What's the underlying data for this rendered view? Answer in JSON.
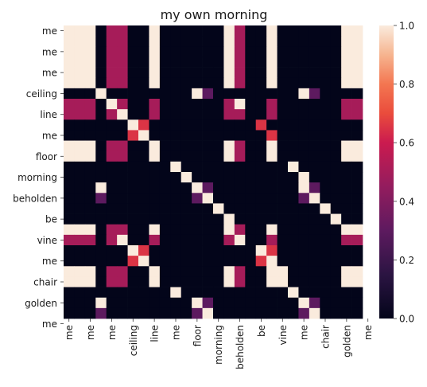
{
  "chart_data": {
    "type": "heatmap",
    "title": "my own morning",
    "xlabel": "",
    "ylabel": "",
    "tokens": [
      "me",
      "me",
      "me",
      "",
      "ceiling",
      "",
      "line",
      "",
      "me",
      "",
      "floor",
      "",
      "morning",
      "",
      "beholden",
      "",
      "be",
      "",
      "vine",
      "",
      "me",
      "",
      "chair",
      "",
      "golden",
      "",
      "me",
      ""
    ],
    "y_tick_labels": [
      "me",
      "me",
      "me",
      "ceiling",
      "line",
      "me",
      "floor",
      "morning",
      "beholden",
      "be",
      "vine",
      "me",
      "chair",
      "golden",
      "me"
    ],
    "x_tick_labels": [
      "me",
      "me",
      "me",
      "ceiling",
      "line",
      "me",
      "floor",
      "morning",
      "beholden",
      "be",
      "vine",
      "me",
      "chair",
      "golden",
      "me"
    ],
    "clim": [
      0.0,
      1.0
    ],
    "colorbar_ticks": [
      "0.0",
      "0.2",
      "0.4",
      "0.6",
      "0.8",
      "1.0"
    ],
    "colormap": "rocket",
    "values": [
      [
        1,
        1,
        1,
        0,
        0.5,
        0.5,
        0,
        0,
        1,
        0,
        0,
        0,
        0,
        0,
        0,
        1,
        0.5,
        0,
        0,
        1,
        0,
        0,
        0,
        0,
        0,
        0,
        1,
        1
      ],
      [
        1,
        1,
        1,
        0,
        0.5,
        0.5,
        0,
        0,
        1,
        0,
        0,
        0,
        0,
        0,
        0,
        1,
        0.5,
        0,
        0,
        1,
        0,
        0,
        0,
        0,
        0,
        0,
        1,
        1
      ],
      [
        1,
        1,
        1,
        0,
        0.5,
        0.5,
        0,
        0,
        1,
        0,
        0,
        0,
        0,
        0,
        0,
        1,
        0.5,
        0,
        0,
        1,
        0,
        0,
        0,
        0,
        0,
        0,
        1,
        1
      ],
      [
        1,
        1,
        1,
        0,
        0.5,
        0.5,
        0,
        0,
        1,
        0,
        0,
        0,
        0,
        0,
        0,
        1,
        0.5,
        0,
        0,
        1,
        0,
        0,
        0,
        0,
        0,
        0,
        1,
        1
      ],
      [
        1,
        1,
        1,
        0,
        0.5,
        0.5,
        0,
        0,
        1,
        0,
        0,
        0,
        0,
        0,
        0,
        1,
        0.5,
        0,
        0,
        1,
        0,
        0,
        0,
        0,
        0,
        0,
        1,
        1
      ],
      [
        1,
        1,
        1,
        0,
        0.5,
        0.5,
        0,
        0,
        1,
        0,
        0,
        0,
        0,
        0,
        0,
        1,
        0.5,
        0,
        0,
        1,
        0,
        0,
        0,
        0,
        0,
        0,
        1,
        1
      ],
      [
        0,
        0,
        0,
        1,
        0,
        0,
        0,
        0,
        0,
        0,
        0,
        0,
        1,
        0.3,
        0,
        0,
        0,
        0,
        0,
        0,
        0,
        0,
        1,
        0.3,
        0,
        0,
        0,
        0
      ],
      [
        0.5,
        0.5,
        0.5,
        0,
        1,
        0.5,
        0,
        0,
        0.5,
        0,
        0,
        0,
        0,
        0,
        0,
        0.5,
        1,
        0,
        0,
        0.5,
        0,
        0,
        0,
        0,
        0,
        0,
        0.5,
        0.5
      ],
      [
        0.5,
        0.5,
        0.5,
        0,
        0.5,
        1,
        0,
        0,
        0.5,
        0,
        0,
        0,
        0,
        0,
        0,
        0.5,
        0.5,
        0,
        0,
        0.5,
        0,
        0,
        0,
        0,
        0,
        0,
        0.5,
        0.5
      ],
      [
        0,
        0,
        0,
        0,
        0,
        0,
        1,
        0.65,
        0,
        0,
        0,
        0,
        0,
        0,
        0,
        0,
        0,
        0,
        0.65,
        0,
        0,
        0,
        0,
        0,
        0,
        0,
        0,
        0
      ],
      [
        0,
        0,
        0,
        0,
        0,
        0,
        0.65,
        1,
        0,
        0,
        0,
        0,
        0,
        0,
        0,
        0,
        0,
        0,
        0,
        0.65,
        0,
        0,
        0,
        0,
        0,
        0,
        0,
        0
      ],
      [
        1,
        1,
        1,
        0,
        0.5,
        0.5,
        0,
        0,
        1,
        0,
        0,
        0,
        0,
        0,
        0,
        1,
        0.5,
        0,
        0,
        1,
        0,
        0,
        0,
        0,
        0,
        0,
        1,
        1
      ],
      [
        1,
        1,
        1,
        0,
        0.5,
        0.5,
        0,
        0,
        1,
        0,
        0,
        0,
        0,
        0,
        0,
        1,
        0.5,
        0,
        0,
        1,
        0,
        0,
        0,
        0,
        0,
        0,
        1,
        1
      ],
      [
        0,
        0,
        0,
        0,
        0,
        0,
        0,
        0,
        0,
        0,
        1,
        0,
        0,
        0,
        0,
        0,
        0,
        0,
        0,
        0,
        0,
        1,
        0,
        0,
        0,
        0,
        0,
        0
      ],
      [
        0,
        0,
        0,
        0,
        0,
        0,
        0,
        0,
        0,
        0,
        0,
        1,
        0,
        0,
        0,
        0,
        0,
        0,
        0,
        0,
        0,
        0,
        1,
        0,
        0,
        0,
        0,
        0
      ],
      [
        0,
        0,
        0,
        1,
        0,
        0,
        0,
        0,
        0,
        0,
        0,
        0,
        1,
        0.3,
        0,
        0,
        0,
        0,
        0,
        0,
        0,
        0,
        1,
        0.3,
        0,
        0,
        0,
        0
      ],
      [
        0,
        0,
        0,
        0.3,
        0,
        0,
        0,
        0,
        0,
        0,
        0,
        0,
        0.3,
        1,
        0,
        0,
        0,
        0,
        0,
        0,
        0,
        0,
        0.3,
        1,
        0,
        0,
        0,
        0
      ],
      [
        0,
        0,
        0,
        0,
        0,
        0,
        0,
        0,
        0,
        0,
        0,
        0,
        0,
        0,
        1,
        0,
        0,
        0,
        0,
        0,
        0,
        0,
        0,
        0,
        1,
        0,
        0,
        0
      ],
      [
        0,
        0,
        0,
        0,
        0,
        0,
        0,
        0,
        0,
        0,
        0,
        0,
        0,
        0,
        0,
        1,
        0,
        0,
        0,
        0,
        0,
        0,
        0,
        0,
        0,
        1,
        0,
        0
      ],
      [
        1,
        1,
        1,
        0,
        0.5,
        0.5,
        0,
        0,
        1,
        0,
        0,
        0,
        0,
        0,
        0,
        1,
        0.5,
        0,
        0,
        1,
        0,
        0,
        0,
        0,
        0,
        0,
        1,
        1
      ],
      [
        0.5,
        0.5,
        0.5,
        0,
        0.5,
        1,
        0,
        0,
        0.5,
        0,
        0,
        0,
        0,
        0,
        0,
        0.5,
        1,
        0,
        0,
        0.5,
        0,
        0,
        0,
        0,
        0,
        0,
        0.5,
        0.5
      ],
      [
        0,
        0,
        0,
        0,
        0,
        0,
        1,
        0.65,
        0,
        0,
        0,
        0,
        0,
        0,
        0,
        0,
        0,
        0,
        1,
        0.65,
        0,
        0,
        0,
        0,
        0,
        0,
        0,
        0
      ],
      [
        0,
        0,
        0,
        0,
        0,
        0,
        0.65,
        1,
        0,
        0,
        0,
        0,
        0,
        0,
        0,
        0,
        0,
        0,
        0.65,
        1,
        0,
        0,
        0,
        0,
        0,
        0,
        0,
        0
      ],
      [
        1,
        1,
        1,
        0,
        0.5,
        0.5,
        0,
        0,
        1,
        0,
        0,
        0,
        0,
        0,
        0,
        1,
        0.5,
        0,
        0,
        1,
        1,
        0,
        0,
        0,
        0,
        0,
        1,
        1
      ],
      [
        1,
        1,
        1,
        0,
        0.5,
        0.5,
        0,
        0,
        1,
        0,
        0,
        0,
        0,
        0,
        0,
        1,
        0.5,
        0,
        0,
        1,
        1,
        0,
        0,
        0,
        0,
        0,
        1,
        1
      ],
      [
        0,
        0,
        0,
        0,
        0,
        0,
        0,
        0,
        0,
        0,
        1,
        0,
        0,
        0,
        0,
        0,
        0,
        0,
        0,
        0,
        0,
        1,
        0,
        0,
        0,
        0,
        0,
        0
      ],
      [
        0,
        0,
        0,
        1,
        0,
        0,
        0,
        0,
        0,
        0,
        0,
        0,
        1,
        0.3,
        0,
        0,
        0,
        0,
        0,
        0,
        0,
        0,
        1,
        0.3,
        0,
        0,
        0,
        0
      ],
      [
        0,
        0,
        0,
        0.3,
        0,
        0,
        0,
        0,
        0,
        0,
        0,
        0,
        0.3,
        1,
        0,
        0,
        0,
        0,
        0,
        0,
        0,
        0,
        0.3,
        1,
        0,
        0,
        0,
        0
      ]
    ]
  }
}
